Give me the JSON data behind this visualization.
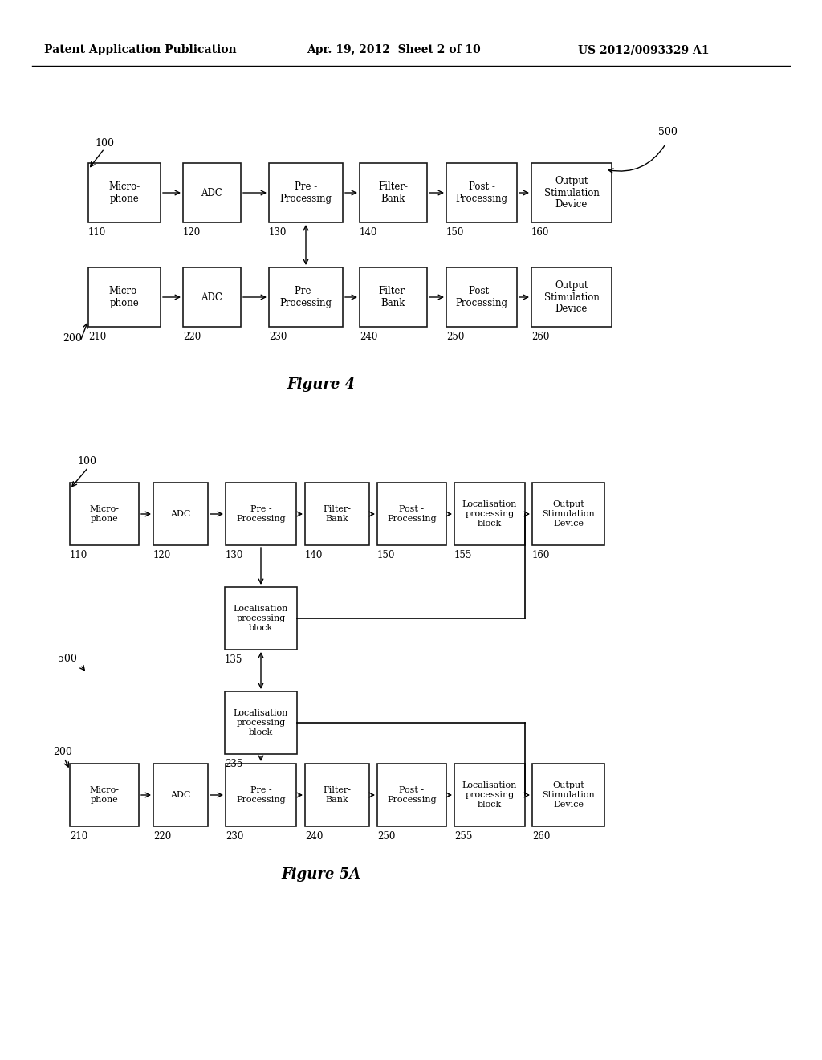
{
  "header_left": "Patent Application Publication",
  "header_mid": "Apr. 19, 2012  Sheet 2 of 10",
  "header_right": "US 2012/0093329 A1",
  "fig4_title": "Figure 4",
  "fig5a_title": "Figure 5A",
  "bg_color": "#ffffff",
  "fig4": {
    "row1_labels": [
      "Micro-\nphone",
      "ADC",
      "Pre -\nProcessing",
      "Filter-\nBank",
      "Post -\nProcessing",
      "Output\nStimulation\nDevice"
    ],
    "row1_ids": [
      "110",
      "120",
      "130",
      "140",
      "150",
      "160"
    ],
    "row2_labels": [
      "Micro-\nphone",
      "ADC",
      "Pre -\nProcessing",
      "Filter-\nBank",
      "Post -\nProcessing",
      "Output\nStimulation\nDevice"
    ],
    "row2_ids": [
      "210",
      "220",
      "230",
      "240",
      "250",
      "260"
    ]
  },
  "fig5a": {
    "row1_labels": [
      "Micro-\nphone",
      "ADC",
      "Pre -\nProcessing",
      "Filter-\nBank",
      "Post -\nProcessing",
      "Localisation\nprocessing\nblock",
      "Output\nStimulation\nDevice"
    ],
    "row1_ids": [
      "110",
      "120",
      "130",
      "140",
      "150",
      "155",
      "160"
    ],
    "mid_top_label": "Localisation\nprocessing\nblock",
    "mid_top_id": "135",
    "mid_bot_label": "Localisation\nprocessing\nblock",
    "mid_bot_id": "235",
    "row2_labels": [
      "Micro-\nphone",
      "ADC",
      "Pre -\nProcessing",
      "Filter-\nBank",
      "Post -\nProcessing",
      "Localisation\nprocessing\nblock",
      "Output\nStimulation\nDevice"
    ],
    "row2_ids": [
      "210",
      "220",
      "230",
      "240",
      "250",
      "255",
      "260"
    ]
  }
}
